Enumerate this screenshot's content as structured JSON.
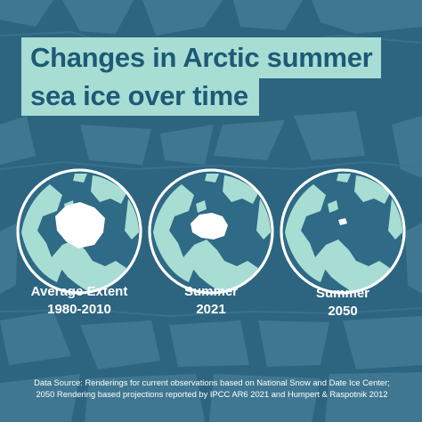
{
  "title": {
    "line1": "Changes in Arctic summer",
    "line2": "sea ice over time"
  },
  "globes": [
    {
      "label_line1": "Average Extent",
      "label_line2": "1980-2010",
      "ice_extent": "large"
    },
    {
      "label_line1": "Summer",
      "label_line2": "2021",
      "ice_extent": "medium"
    },
    {
      "label_line1": "Summer",
      "label_line2": "2050",
      "ice_extent": "minimal"
    }
  ],
  "source": {
    "line1": "Data Source: Renderings for current observations based on National Snow and Date Ice Center;",
    "line2": "2050 Rendering based projections reported by IPCC AR6 2021 and Humpert & Raspotnik 2012"
  },
  "colors": {
    "background": "#2d6580",
    "ice_shard": "#4f86a0",
    "title_bg": "#a8ddd4",
    "title_text": "#1e5a76",
    "ocean": "#2f6a86",
    "land": "#a8ddd4",
    "sea_ice": "#ffffff",
    "globe_outline": "#ffffff"
  }
}
